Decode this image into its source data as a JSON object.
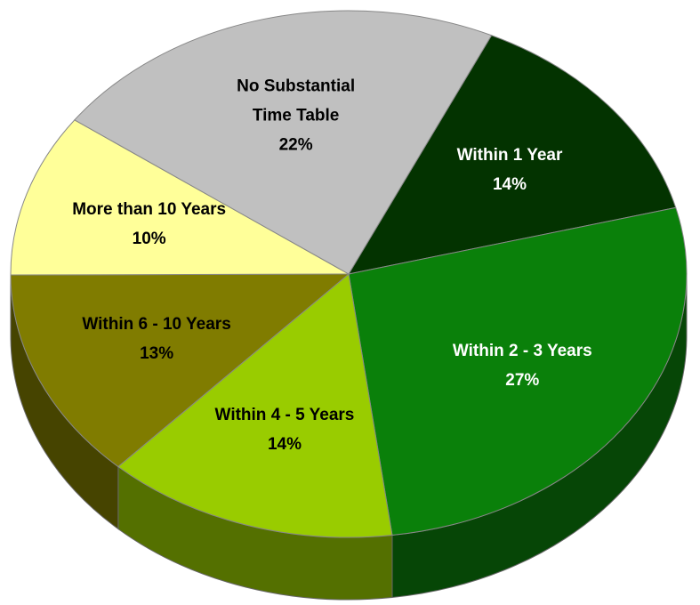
{
  "chart_data": {
    "type": "pie",
    "categories": [
      "Within 1 Year",
      "Within 2 - 3 Years",
      "Within 4 - 5 Years",
      "Within 6 - 10 Years",
      "More than 10 Years",
      "No Substantial Time Table"
    ],
    "values": [
      14,
      27,
      14,
      13,
      10,
      22
    ],
    "value_labels": [
      "14%",
      "27%",
      "14%",
      "13%",
      "10%",
      "22%"
    ],
    "colors": [
      "#033300",
      "#0a800a",
      "#99cc00",
      "#807c00",
      "#ffff99",
      "#c0c0c0"
    ]
  }
}
